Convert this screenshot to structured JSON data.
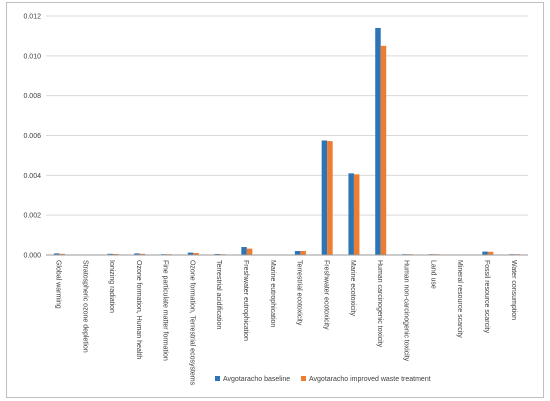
{
  "chart_data": {
    "type": "bar",
    "categories": [
      "Global warming",
      "Stratospheric ozone depletion",
      "Ionizing radiation",
      "Ozone formation, Human health",
      "Fine particulate matter formation",
      "Ozone formation, Terrestrial ecosystems",
      "Terrestrial acidification",
      "Freshwater eutrophication",
      "Marine eutrophication",
      "Terrestrial ecotoxicity",
      "Freshwater ecotoxicity",
      "Marine ecotoxicity",
      "Human carcinogenic toxicity",
      "Human non-carcinogenic toxicity",
      "Land use",
      "Mineral resource scarcity",
      "Fossil resource scarcity",
      "Water consumption"
    ],
    "series": [
      {
        "name": "Avgotaracho baseline",
        "color": "#2e75b6",
        "values": [
          8e-05,
          0.0,
          6e-05,
          8e-05,
          2e-05,
          0.00012,
          5e-05,
          0.0004,
          0.0,
          0.0002,
          0.00575,
          0.0041,
          0.0114,
          2e-05,
          3e-05,
          0.0,
          0.00017,
          1e-05
        ]
      },
      {
        "name": "Avgotaracho improved waste treatment",
        "color": "#ed7d31",
        "values": [
          6e-05,
          0.0,
          5e-05,
          6e-05,
          2e-05,
          0.0001,
          4e-05,
          0.00032,
          0.0,
          0.0002,
          0.00572,
          0.00405,
          0.0105,
          2e-05,
          3e-05,
          0.0,
          0.00016,
          1e-05
        ]
      }
    ],
    "y_ticks": [
      "0.000",
      "0.002",
      "0.004",
      "0.006",
      "0.008",
      "0.010",
      "0.012"
    ],
    "ylim": [
      0,
      0.012
    ],
    "title": "",
    "xlabel": "",
    "ylabel": "",
    "grid": true,
    "legend_position": "bottom"
  }
}
